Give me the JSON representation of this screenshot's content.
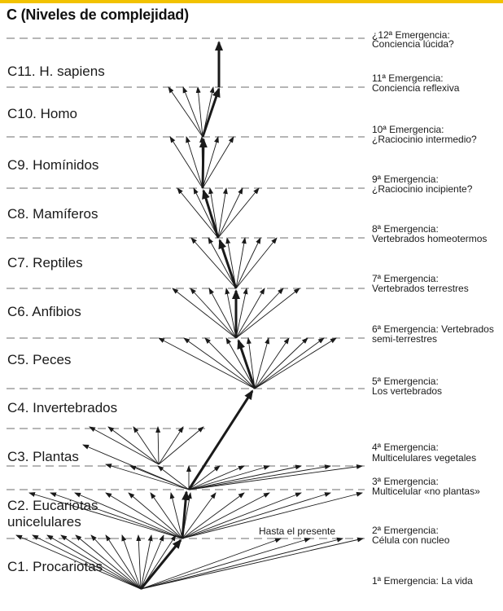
{
  "title": "C (Niveles de complejidad)",
  "levels": [
    {
      "label": "C11. H. sapiens"
    },
    {
      "label": "C10. Homo"
    },
    {
      "label": "C9. Homínidos"
    },
    {
      "label": "C8. Mamíferos"
    },
    {
      "label": "C7. Reptiles"
    },
    {
      "label": "C6. Anfibios"
    },
    {
      "label": "C5. Peces"
    },
    {
      "label": "C4. Invertebrados"
    },
    {
      "label": "C3. Plantas"
    },
    {
      "label_line1": "C2. Eucariotas",
      "label_line2": "unicelulares"
    },
    {
      "label": "C1. Procariotas"
    }
  ],
  "emergencias": [
    {
      "line1": "¿12ª Emergencia:",
      "line2": "Conciencia lúcida?"
    },
    {
      "line1": "11ª Emergencia:",
      "line2": "Conciencia reflexiva"
    },
    {
      "line1": "10ª Emergencia:",
      "line2": "¿Raciocinio intermedio?"
    },
    {
      "line1": "9ª Emergencia:",
      "line2": "¿Raciocinio incipiente?"
    },
    {
      "line1": "8ª Emergencia:",
      "line2": "Vertebrados homeotermos"
    },
    {
      "line1": "7ª Emergencia:",
      "line2": "Vertebrados terrestres"
    },
    {
      "line1": "6ª Emergencia: Vertebrados",
      "line2": "semi-terrestres"
    },
    {
      "line1": "5ª Emergencia:",
      "line2": "Los vertebrados"
    },
    {
      "line1": "4ª Emergencia:",
      "line2": "Multicelulares vegetales"
    },
    {
      "line1": "3ª Emergencia:",
      "line2": "Multicelular «no plantas»"
    },
    {
      "line1": "2ª Emergencia:",
      "line2": "Célula con nucleo"
    },
    {
      "line1": "1ª Emergencia: La vida"
    }
  ],
  "present_label": "Hasta el presente",
  "colors": {
    "accent": "#f2c200",
    "line": "#1a1a1a",
    "dash": "#8a8a8a"
  }
}
